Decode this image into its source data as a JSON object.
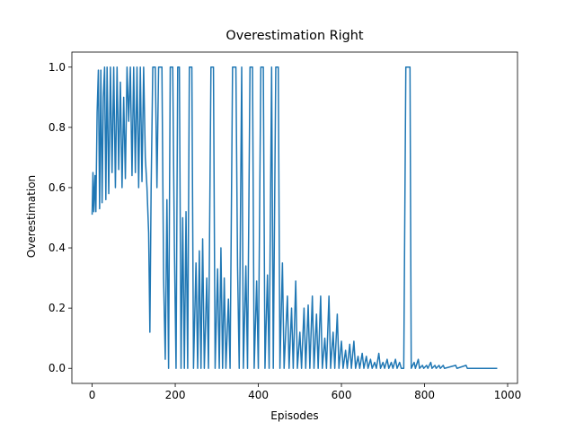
{
  "chart_data": {
    "type": "line",
    "title": "Overestimation Right",
    "x_label": "Episodes",
    "y_label": "Overestimation",
    "color": "#1f77b4",
    "xlim": [
      -48.75,
      1023.75
    ],
    "ylim": [
      -0.05,
      1.05
    ],
    "xticks": [
      0,
      200,
      400,
      600,
      800,
      1000
    ],
    "yticks": [
      {
        "value": 0,
        "label": "0.0"
      },
      {
        "value": 0.2,
        "label": "0.2"
      },
      {
        "value": 0.4,
        "label": "0.4"
      },
      {
        "value": 0.6,
        "label": "0.6"
      },
      {
        "value": 0.8,
        "label": "0.8"
      },
      {
        "value": 1,
        "label": "1.0"
      }
    ],
    "x": [
      0,
      2,
      4,
      7,
      9,
      12,
      15,
      18,
      21,
      24,
      27,
      30,
      33,
      36,
      40,
      44,
      48,
      52,
      56,
      60,
      64,
      68,
      72,
      76,
      80,
      84,
      88,
      92,
      96,
      100,
      104,
      108,
      112,
      116,
      120,
      124,
      128,
      132,
      136,
      139,
      142,
      146,
      152,
      156,
      160,
      168,
      172,
      176,
      180,
      184,
      188,
      194,
      198,
      202,
      206,
      210,
      214,
      218,
      222,
      226,
      230,
      234,
      240,
      244,
      250,
      254,
      258,
      262,
      266,
      270,
      276,
      280,
      286,
      292,
      296,
      302,
      306,
      310,
      314,
      318,
      322,
      328,
      332,
      338,
      346,
      350,
      354,
      360,
      364,
      370,
      374,
      380,
      386,
      390,
      396,
      400,
      406,
      412,
      416,
      422,
      426,
      432,
      436,
      442,
      448,
      452,
      458,
      462,
      470,
      474,
      480,
      484,
      490,
      494,
      500,
      504,
      510,
      514,
      520,
      524,
      530,
      534,
      540,
      544,
      550,
      554,
      560,
      564,
      570,
      574,
      580,
      584,
      590,
      594,
      600,
      604,
      610,
      614,
      620,
      624,
      630,
      634,
      640,
      644,
      650,
      654,
      660,
      664,
      670,
      674,
      680,
      684,
      690,
      694,
      700,
      704,
      710,
      714,
      720,
      724,
      730,
      734,
      740,
      744,
      750,
      755,
      765,
      768,
      775,
      778,
      785,
      788,
      795,
      798,
      805,
      808,
      815,
      818,
      825,
      828,
      835,
      838,
      845,
      848,
      875,
      878,
      900,
      903,
      975
    ],
    "values": [
      0.51,
      0.65,
      0.52,
      0.64,
      0.52,
      0.85,
      0.99,
      0.53,
      0.99,
      0.55,
      0.9,
      1.0,
      0.56,
      1.0,
      0.58,
      1.0,
      0.65,
      1.0,
      0.6,
      1.0,
      0.66,
      0.95,
      0.6,
      0.9,
      0.63,
      1.0,
      0.82,
      1.0,
      0.64,
      1.0,
      0.65,
      1.0,
      0.6,
      1.0,
      0.62,
      1.0,
      0.7,
      0.6,
      0.45,
      0.12,
      0.6,
      1.0,
      1.0,
      0.6,
      1.0,
      1.0,
      0.3,
      0.03,
      0.56,
      0.0,
      1.0,
      1.0,
      0.4,
      0.0,
      1.0,
      1.0,
      0.0,
      0.5,
      0.0,
      0.52,
      0.0,
      1.0,
      1.0,
      0.0,
      0.35,
      0.0,
      0.39,
      0.0,
      0.43,
      0.0,
      0.3,
      0.0,
      1.0,
      1.0,
      0.0,
      0.33,
      0.0,
      0.4,
      0.0,
      0.3,
      0.0,
      0.23,
      0.0,
      1.0,
      1.0,
      0.34,
      0.0,
      1.0,
      0.0,
      0.34,
      0.0,
      1.0,
      1.0,
      0.0,
      0.29,
      0.0,
      1.0,
      1.0,
      0.0,
      0.31,
      0.0,
      1.0,
      0.0,
      1.0,
      1.0,
      0.0,
      0.35,
      0.0,
      0.24,
      0.0,
      0.2,
      0.0,
      0.29,
      0.0,
      0.12,
      0.0,
      0.2,
      0.0,
      0.21,
      0.0,
      0.24,
      0.0,
      0.18,
      0.0,
      0.24,
      0.0,
      0.1,
      0.0,
      0.24,
      0.0,
      0.12,
      0.0,
      0.18,
      0.0,
      0.09,
      0.0,
      0.06,
      0.0,
      0.08,
      0.0,
      0.09,
      0.0,
      0.04,
      0.0,
      0.05,
      0.0,
      0.04,
      0.0,
      0.03,
      0.0,
      0.02,
      0.0,
      0.05,
      0.0,
      0.02,
      0.0,
      0.03,
      0.0,
      0.02,
      0.0,
      0.03,
      0.0,
      0.02,
      0.0,
      0.0,
      1.0,
      1.0,
      0.0,
      0.02,
      0.0,
      0.03,
      0.0,
      0.01,
      0.0,
      0.01,
      0.0,
      0.02,
      0.0,
      0.01,
      0.0,
      0.01,
      0.0,
      0.01,
      0.0,
      0.01,
      0.0,
      0.01,
      0.0,
      0.0
    ]
  }
}
